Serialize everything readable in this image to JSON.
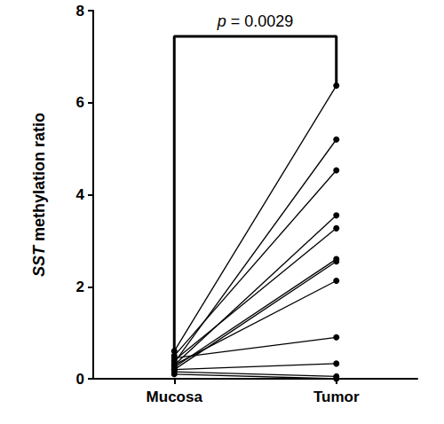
{
  "chart_data": {
    "type": "line",
    "y_label": "SST methylation ratio",
    "annotation": "p = 0.0029",
    "categories": [
      "Mucosa",
      "Tumor"
    ],
    "series": [
      {
        "values": [
          0.6,
          6.37
        ]
      },
      {
        "values": [
          0.35,
          5.2
        ]
      },
      {
        "values": [
          0.5,
          4.53
        ]
      },
      {
        "values": [
          0.3,
          3.55
        ]
      },
      {
        "values": [
          0.4,
          3.27
        ]
      },
      {
        "values": [
          0.25,
          2.6
        ]
      },
      {
        "values": [
          0.2,
          2.55
        ]
      },
      {
        "values": [
          0.3,
          2.13
        ]
      },
      {
        "values": [
          0.45,
          0.9
        ]
      },
      {
        "values": [
          0.2,
          0.33
        ]
      },
      {
        "values": [
          0.15,
          0.05
        ]
      },
      {
        "values": [
          0.1,
          0.0
        ]
      }
    ],
    "color": "#000000",
    "marker": "circle",
    "ylim": [
      0,
      8
    ],
    "yticks": [
      0,
      2,
      4,
      6,
      8
    ],
    "grid": false
  }
}
